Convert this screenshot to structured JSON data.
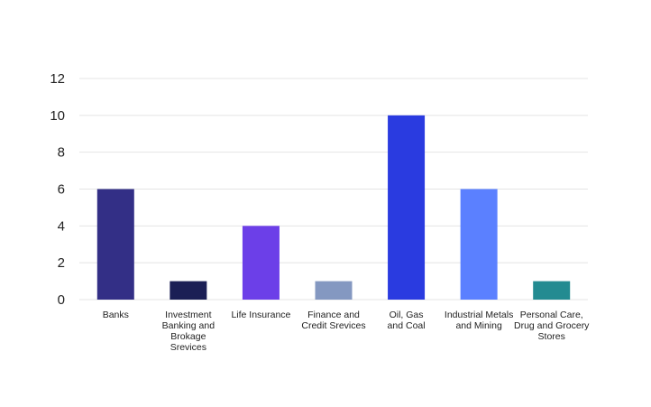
{
  "chart_data": {
    "type": "bar",
    "title": "",
    "xlabel": "",
    "ylabel": "",
    "ylim": [
      0,
      12
    ],
    "yticks": [
      0,
      2,
      4,
      6,
      8,
      10,
      12
    ],
    "grid": true,
    "legend": "none",
    "categories": [
      "Banks",
      "Investment Banking and Brokage Srevices",
      "Life Insurance",
      "Finance and Credit Srevices",
      "Oil, Gas and Coal",
      "Industrial Metals and Mining",
      "Personal Care, Drug and Grocery Stores"
    ],
    "category_lines": [
      [
        "Banks"
      ],
      [
        "Investment",
        "Banking and",
        "Brokage",
        "Srevices"
      ],
      [
        "Life Insurance"
      ],
      [
        "Finance and",
        "Credit Srevices"
      ],
      [
        "Oil, Gas",
        "and Coal"
      ],
      [
        "Industrial Metals",
        "and Mining"
      ],
      [
        "Personal Care,",
        "Drug and Grocery",
        "Stores"
      ]
    ],
    "values": [
      6,
      1,
      4,
      1,
      10,
      6,
      1
    ],
    "colors": [
      "#332f86",
      "#1b1f55",
      "#6c3fe8",
      "#8498c1",
      "#2a3be0",
      "#5b80ff",
      "#238b91"
    ]
  }
}
